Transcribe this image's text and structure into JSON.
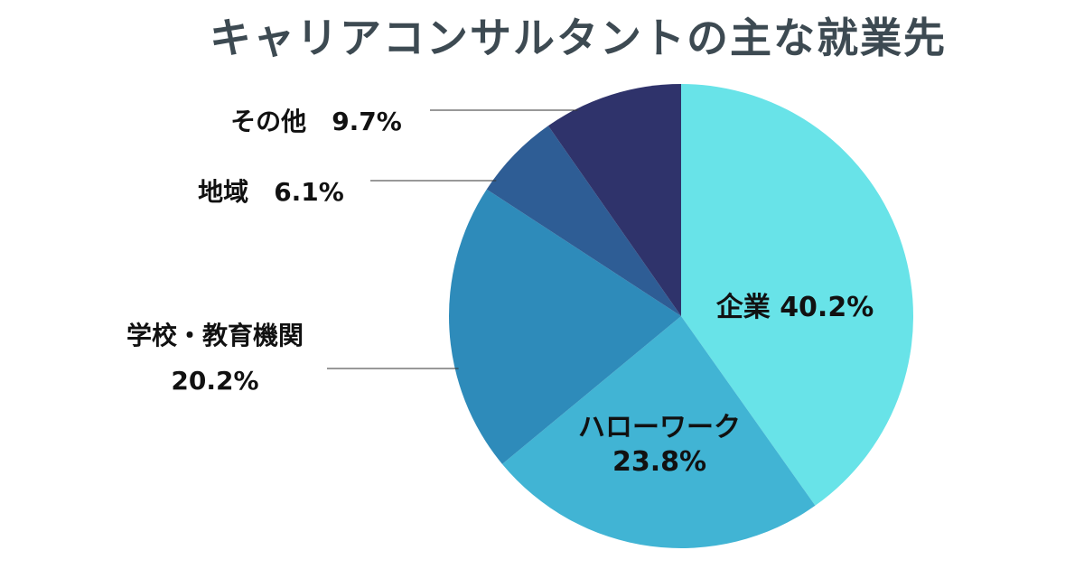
{
  "chart_data": {
    "type": "pie",
    "title": "キャリアコンサルタントの主な就業先",
    "start_angle": "12 o'clock",
    "direction": "clockwise",
    "slices": [
      {
        "name": "企業",
        "value": 40.2,
        "value_label": "40.2%",
        "color": "#68e3e8"
      },
      {
        "name": "ハローワーク",
        "value": 23.8,
        "value_label": "23.8%",
        "color": "#41b4d4"
      },
      {
        "name": "学校・教育機関",
        "value": 20.2,
        "value_label": "20.2%",
        "color": "#2e8bba"
      },
      {
        "name": "地域",
        "value": 6.1,
        "value_label": "6.1%",
        "color": "#2e5d95"
      },
      {
        "name": "その他",
        "value": 9.7,
        "value_label": "9.7%",
        "color": "#2f336b"
      }
    ],
    "legend": "none"
  }
}
